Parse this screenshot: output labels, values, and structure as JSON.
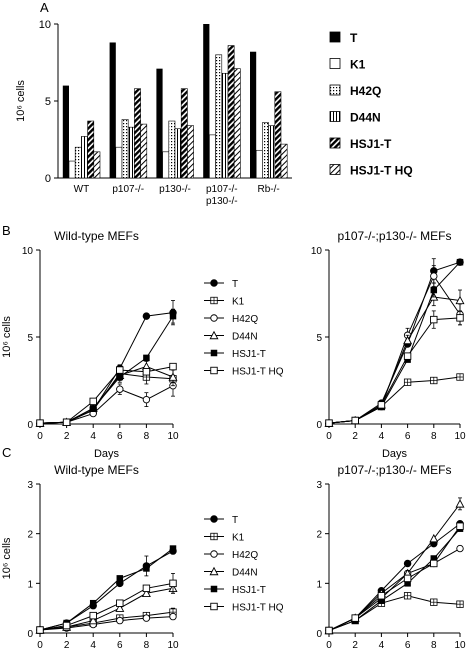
{
  "panel_labels": [
    "A",
    "B",
    "C"
  ],
  "legend_labels": [
    "T",
    "K1",
    "H42Q",
    "D44N",
    "HSJ1-T",
    "HSJ1-T  HQ"
  ],
  "chart_data": [
    {
      "id": "A",
      "type": "bar",
      "title": "",
      "ylabel": "10⁶ cells",
      "ylim": [
        0,
        10
      ],
      "yticks": [
        0,
        5,
        10
      ],
      "categories": [
        "WT",
        "p107-/-",
        "p130-/-",
        "p107-/-",
        "Rb-/-"
      ],
      "category_sublabels": [
        "",
        "",
        "",
        "p130-/-",
        ""
      ],
      "series": [
        {
          "name": "T",
          "values": [
            6.0,
            8.8,
            7.1,
            10.0,
            8.2
          ]
        },
        {
          "name": "K1",
          "values": [
            1.1,
            2.0,
            1.7,
            2.8,
            1.8
          ]
        },
        {
          "name": "H42Q",
          "values": [
            2.0,
            3.8,
            3.7,
            8.0,
            3.6
          ]
        },
        {
          "name": "D44N",
          "values": [
            2.7,
            3.3,
            3.2,
            6.8,
            3.4
          ]
        },
        {
          "name": "HSJ1-T",
          "values": [
            3.7,
            5.8,
            5.8,
            8.6,
            5.6
          ]
        },
        {
          "name": "HSJ1-T  HQ",
          "values": [
            1.7,
            3.5,
            3.4,
            7.1,
            2.2
          ]
        }
      ],
      "legend": "right"
    },
    {
      "id": "B-left",
      "type": "line",
      "title": "Wild-type   MEFs",
      "xlabel": "Days",
      "ylabel": "10⁶ cells",
      "xlim": [
        0,
        10
      ],
      "ylim": [
        0,
        10
      ],
      "xticks": [
        0,
        2,
        4,
        6,
        8,
        10
      ],
      "yticks": [
        0,
        5,
        10
      ],
      "series": [
        {
          "name": "T",
          "x": [
            0,
            2,
            4,
            6,
            8,
            10
          ],
          "y": [
            0.05,
            0.1,
            0.8,
            3.2,
            6.2,
            6.4
          ],
          "err": [
            0,
            0,
            0,
            0,
            0,
            0.7
          ]
        },
        {
          "name": "K1",
          "x": [
            0,
            2,
            4,
            6,
            8,
            10
          ],
          "y": [
            0.05,
            0.1,
            0.8,
            2.9,
            2.7,
            2.6
          ],
          "err": [
            0,
            0,
            0,
            0.5,
            0.4,
            0.5
          ]
        },
        {
          "name": "H42Q",
          "x": [
            0,
            2,
            4,
            6,
            8,
            10
          ],
          "y": [
            0.05,
            0.1,
            0.6,
            2.0,
            1.4,
            2.2
          ],
          "err": [
            0,
            0,
            0,
            0.3,
            0.4,
            0.6
          ]
        },
        {
          "name": "D44N",
          "x": [
            0,
            2,
            4,
            6,
            8,
            10
          ],
          "y": [
            0.05,
            0.1,
            0.9,
            2.8,
            3.3,
            2.7
          ],
          "err": [
            0,
            0,
            0,
            0.3,
            0.3,
            0.5
          ]
        },
        {
          "name": "HSJ1-T",
          "x": [
            0,
            2,
            4,
            6,
            8,
            10
          ],
          "y": [
            0.05,
            0.1,
            0.9,
            2.7,
            3.8,
            6.2
          ],
          "err": [
            0,
            0,
            0,
            0,
            0,
            0.4
          ]
        },
        {
          "name": "HSJ1-T  HQ",
          "x": [
            0,
            2,
            4,
            6,
            8,
            10
          ],
          "y": [
            0.05,
            0.1,
            1.3,
            3.1,
            3.0,
            3.3
          ],
          "err": [
            0,
            0,
            0,
            0.3,
            0,
            0
          ]
        }
      ],
      "legend": "right"
    },
    {
      "id": "B-right",
      "type": "line",
      "title": "p107-/-;p130-/-   MEFs",
      "xlabel": "Days",
      "xlim": [
        0,
        10
      ],
      "ylim": [
        0,
        10
      ],
      "xticks": [
        0,
        2,
        4,
        6,
        8,
        10
      ],
      "yticks": [
        0,
        5,
        10
      ],
      "series": [
        {
          "name": "T",
          "x": [
            0,
            2,
            4,
            6,
            8,
            10
          ],
          "y": [
            0.05,
            0.2,
            1.2,
            4.6,
            8.8,
            9.3
          ],
          "err": [
            0,
            0,
            0,
            0,
            0.7,
            0
          ]
        },
        {
          "name": "K1",
          "x": [
            0,
            2,
            4,
            6,
            8,
            10
          ],
          "y": [
            0.05,
            0.2,
            1.0,
            2.4,
            2.5,
            2.7
          ],
          "err": [
            0,
            0,
            0,
            0,
            0,
            0
          ]
        },
        {
          "name": "H42Q",
          "x": [
            0,
            2,
            4,
            6,
            8,
            10
          ],
          "y": [
            0.05,
            0.2,
            1.0,
            5.1,
            8.5,
            6.3
          ],
          "err": [
            0,
            0,
            0,
            0.4,
            0.6,
            0.6
          ]
        },
        {
          "name": "D44N",
          "x": [
            0,
            2,
            4,
            6,
            8,
            10
          ],
          "y": [
            0.05,
            0.2,
            1.1,
            4.8,
            7.3,
            7.1
          ],
          "err": [
            0,
            0,
            0,
            0.3,
            0.5,
            0.6
          ]
        },
        {
          "name": "HSJ1-T",
          "x": [
            0,
            2,
            4,
            6,
            8,
            10
          ],
          "y": [
            0.05,
            0.2,
            1.0,
            3.7,
            7.7,
            9.3
          ],
          "err": [
            0,
            0,
            0,
            0,
            0.4,
            0
          ]
        },
        {
          "name": "HSJ1-T  HQ",
          "x": [
            0,
            2,
            4,
            6,
            8,
            10
          ],
          "y": [
            0.05,
            0.2,
            1.1,
            3.9,
            6.0,
            6.1
          ],
          "err": [
            0,
            0,
            0,
            0,
            0.5,
            0.4
          ]
        }
      ]
    },
    {
      "id": "C-left",
      "type": "line",
      "title": "Wild-type   MEFs",
      "ylabel": "10⁶ cells",
      "xlim": [
        0,
        10
      ],
      "ylim": [
        0,
        3
      ],
      "xticks": [
        0,
        2,
        4,
        6,
        8,
        10
      ],
      "yticks": [
        0,
        1,
        2,
        3
      ],
      "series": [
        {
          "name": "T",
          "x": [
            0,
            2,
            4,
            6,
            8,
            10
          ],
          "y": [
            0.06,
            0.2,
            0.55,
            1.0,
            1.35,
            1.65
          ],
          "err": [
            0,
            0,
            0,
            0,
            0.2,
            0
          ]
        },
        {
          "name": "K1",
          "x": [
            0,
            2,
            4,
            6,
            8,
            10
          ],
          "y": [
            0.06,
            0.12,
            0.2,
            0.3,
            0.35,
            0.42
          ],
          "err": [
            0,
            0,
            0,
            0,
            0,
            0.08
          ]
        },
        {
          "name": "H42Q",
          "x": [
            0,
            2,
            4,
            6,
            8,
            10
          ],
          "y": [
            0.06,
            0.1,
            0.17,
            0.25,
            0.3,
            0.33
          ],
          "err": [
            0,
            0,
            0,
            0,
            0,
            0
          ]
        },
        {
          "name": "D44N",
          "x": [
            0,
            2,
            4,
            6,
            8,
            10
          ],
          "y": [
            0.06,
            0.12,
            0.25,
            0.5,
            0.8,
            0.9
          ],
          "err": [
            0,
            0,
            0,
            0,
            0,
            0.1
          ]
        },
        {
          "name": "HSJ1-T",
          "x": [
            0,
            2,
            4,
            6,
            8,
            10
          ],
          "y": [
            0.06,
            0.2,
            0.6,
            1.1,
            1.3,
            1.7
          ],
          "err": [
            0,
            0,
            0,
            0,
            0,
            0
          ]
        },
        {
          "name": "HSJ1-T  HQ",
          "x": [
            0,
            2,
            4,
            6,
            8,
            10
          ],
          "y": [
            0.06,
            0.15,
            0.35,
            0.6,
            0.9,
            1.0
          ],
          "err": [
            0,
            0,
            0,
            0,
            0,
            0.2
          ]
        }
      ],
      "legend": "right"
    },
    {
      "id": "C-right",
      "type": "line",
      "title": "p107-/-;p130-/-   MEFs",
      "xlim": [
        0,
        10
      ],
      "ylim": [
        0,
        3
      ],
      "xticks": [
        0,
        2,
        4,
        6,
        8,
        10
      ],
      "yticks": [
        0,
        1,
        2,
        3
      ],
      "series": [
        {
          "name": "T",
          "x": [
            0,
            2,
            4,
            6,
            8,
            10
          ],
          "y": [
            0.05,
            0.3,
            0.85,
            1.4,
            1.8,
            2.2
          ],
          "err": [
            0,
            0,
            0,
            0,
            0,
            0
          ]
        },
        {
          "name": "K1",
          "x": [
            0,
            2,
            4,
            6,
            8,
            10
          ],
          "y": [
            0.05,
            0.25,
            0.6,
            0.75,
            0.62,
            0.58
          ],
          "err": [
            0,
            0,
            0,
            0,
            0,
            0
          ]
        },
        {
          "name": "H42Q",
          "x": [
            0,
            2,
            4,
            6,
            8,
            10
          ],
          "y": [
            0.05,
            0.3,
            0.7,
            1.2,
            1.4,
            1.7
          ],
          "err": [
            0,
            0,
            0,
            0,
            0,
            0
          ]
        },
        {
          "name": "D44N",
          "x": [
            0,
            2,
            4,
            6,
            8,
            10
          ],
          "y": [
            0.05,
            0.3,
            0.8,
            1.2,
            1.9,
            2.6
          ],
          "err": [
            0,
            0,
            0,
            0,
            0,
            0.12
          ]
        },
        {
          "name": "HSJ1-T",
          "x": [
            0,
            2,
            4,
            6,
            8,
            10
          ],
          "y": [
            0.05,
            0.25,
            0.65,
            1.0,
            1.5,
            2.1
          ],
          "err": [
            0,
            0,
            0,
            0,
            0,
            0
          ]
        },
        {
          "name": "HSJ1-T  HQ",
          "x": [
            0,
            2,
            4,
            6,
            8,
            10
          ],
          "y": [
            0.05,
            0.3,
            0.75,
            1.1,
            1.4,
            2.15
          ],
          "err": [
            0,
            0,
            0,
            0,
            0,
            0
          ]
        }
      ]
    }
  ]
}
